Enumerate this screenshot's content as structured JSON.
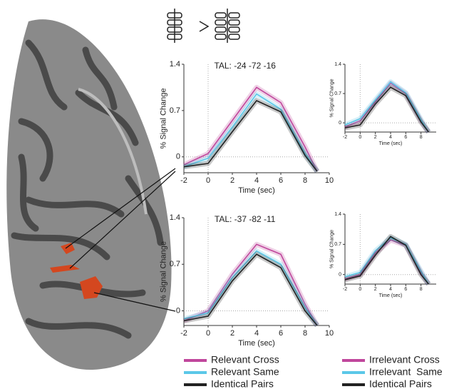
{
  "chart_data": [
    {
      "type": "line",
      "title": "TAL: -24 -72 -16",
      "x_label": "Time (sec)",
      "y_label": "% Signal Change",
      "x": [
        -2,
        0,
        2,
        4,
        6,
        8,
        9
      ],
      "xlim": [
        -2,
        10
      ],
      "xticks": [
        -2,
        0,
        2,
        4,
        6,
        8,
        10
      ],
      "ylim": [
        -0.24,
        1.4
      ],
      "yticks": [
        0,
        0.7,
        1.4
      ],
      "series": [
        {
          "name": "Relevant Cross",
          "color": "#c0479c",
          "values": [
            -0.12,
            0.05,
            0.55,
            1.05,
            0.82,
            0.15,
            -0.22
          ]
        },
        {
          "name": "Relevant Same",
          "color": "#5bc8e8",
          "values": [
            -0.15,
            -0.02,
            0.45,
            0.95,
            0.72,
            0.05,
            -0.22
          ]
        },
        {
          "name": "Identical Pairs",
          "color": "#222222",
          "values": [
            -0.15,
            -0.1,
            0.38,
            0.85,
            0.68,
            0.02,
            -0.22
          ]
        }
      ]
    },
    {
      "type": "line",
      "title": "TAL: -37 -82 -11",
      "x_label": "Time (sec)",
      "y_label": "% Signal Change",
      "x": [
        -2,
        0,
        2,
        4,
        6,
        8,
        9
      ],
      "xlim": [
        -2,
        10
      ],
      "xticks": [
        -2,
        0,
        2,
        4,
        6,
        8,
        10
      ],
      "ylim": [
        -0.22,
        1.4
      ],
      "yticks": [
        0,
        0.7,
        1.4
      ],
      "series": [
        {
          "name": "Relevant Cross",
          "color": "#c0479c",
          "values": [
            -0.15,
            0.0,
            0.55,
            1.0,
            0.85,
            0.1,
            -0.22
          ]
        },
        {
          "name": "Relevant Same",
          "color": "#5bc8e8",
          "values": [
            -0.12,
            -0.03,
            0.5,
            0.9,
            0.7,
            0.05,
            -0.22
          ]
        },
        {
          "name": "Identical Pairs",
          "color": "#222222",
          "values": [
            -0.15,
            -0.08,
            0.45,
            0.85,
            0.65,
            0.0,
            -0.22
          ]
        }
      ]
    },
    {
      "type": "line",
      "x_label": "Time (sec)",
      "y_label": "% Signal Change",
      "x": [
        -2,
        0,
        2,
        4,
        6,
        8,
        9
      ],
      "xlim": [
        -2,
        10
      ],
      "xticks": [
        -2,
        0,
        2,
        4,
        6,
        8
      ],
      "ylim": [
        -0.22,
        1.4
      ],
      "yticks": [
        0,
        0.7,
        1.4
      ],
      "series": [
        {
          "name": "Irrelevant Cross",
          "color": "#c0479c",
          "values": [
            -0.1,
            0.05,
            0.5,
            0.95,
            0.7,
            0.05,
            -0.22
          ]
        },
        {
          "name": "Irrelevant  Same",
          "color": "#5bc8e8",
          "values": [
            -0.05,
            0.1,
            0.55,
            0.98,
            0.72,
            0.08,
            -0.22
          ]
        },
        {
          "name": "Identical Pairs",
          "color": "#222222",
          "values": [
            -0.12,
            -0.05,
            0.45,
            0.85,
            0.65,
            0.02,
            -0.22
          ]
        }
      ]
    },
    {
      "type": "line",
      "x_label": "Time (sec)",
      "y_label": "% Signal Change",
      "x": [
        -2,
        0,
        2,
        4,
        6,
        8,
        9
      ],
      "xlim": [
        -2,
        10
      ],
      "xticks": [
        -2,
        0,
        2,
        4,
        6,
        8
      ],
      "ylim": [
        -0.22,
        1.4
      ],
      "yticks": [
        0,
        0.7,
        1.4
      ],
      "series": [
        {
          "name": "Irrelevant Cross",
          "color": "#c0479c",
          "values": [
            -0.1,
            0.0,
            0.5,
            0.8,
            0.68,
            0.05,
            -0.22
          ]
        },
        {
          "name": "Irrelevant  Same",
          "color": "#5bc8e8",
          "values": [
            -0.05,
            0.05,
            0.55,
            0.85,
            0.7,
            0.08,
            -0.22
          ]
        },
        {
          "name": "Identical Pairs",
          "color": "#222222",
          "values": [
            -0.12,
            -0.03,
            0.45,
            0.88,
            0.68,
            0.0,
            -0.22
          ]
        }
      ]
    }
  ]
}
